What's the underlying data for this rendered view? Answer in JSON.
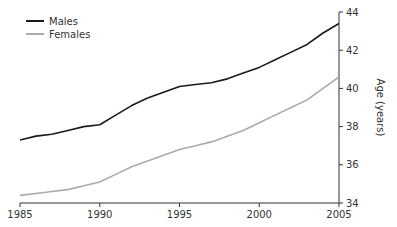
{
  "chart_data": {
    "type": "line",
    "y_label": "Age (years)",
    "x": [
      1985,
      1986,
      1987,
      1988,
      1989,
      1990,
      1991,
      1992,
      1993,
      1994,
      1995,
      1996,
      1997,
      1998,
      1999,
      2000,
      2001,
      2002,
      2003,
      2004,
      2005
    ],
    "series": [
      {
        "name": "Males",
        "color": "#1a1a1a",
        "values": [
          37.3,
          37.5,
          37.6,
          37.8,
          38.0,
          38.1,
          38.6,
          39.1,
          39.5,
          39.8,
          40.1,
          40.2,
          40.3,
          40.5,
          40.8,
          41.1,
          41.5,
          41.9,
          42.3,
          42.9,
          43.4
        ]
      },
      {
        "name": "Females",
        "color": "#aaaaaa",
        "values": [
          34.4,
          34.5,
          34.6,
          34.7,
          34.9,
          35.1,
          35.5,
          35.9,
          36.2,
          36.5,
          36.8,
          37.0,
          37.2,
          37.5,
          37.8,
          38.2,
          38.6,
          39.0,
          39.4,
          40.0,
          40.6
        ]
      }
    ],
    "xlim": [
      1985,
      2005
    ],
    "ylim": [
      34,
      44
    ],
    "xticks": [
      1985,
      1990,
      1995,
      2000,
      2005
    ],
    "yticks": [
      34,
      36,
      38,
      40,
      42,
      44
    ],
    "grid": false,
    "legend": "upper left"
  }
}
